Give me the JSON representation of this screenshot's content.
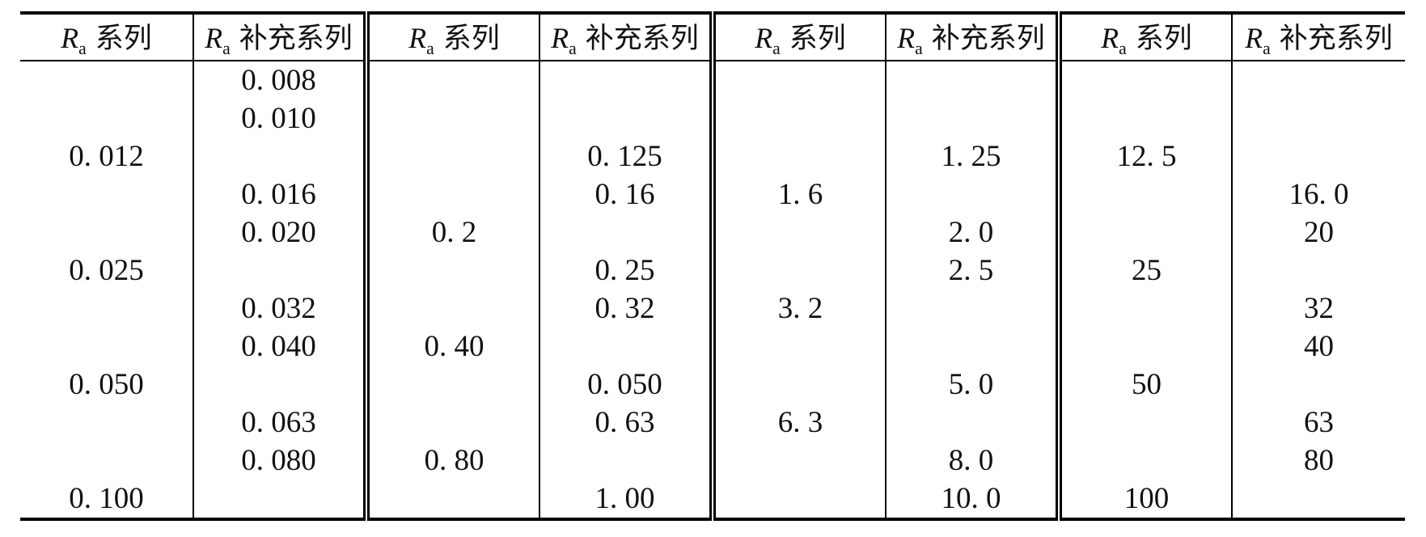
{
  "table": {
    "headers": [
      {
        "symbol": "R",
        "sub": "a",
        "label": "系列"
      },
      {
        "symbol": "R",
        "sub": "a",
        "label": "补充系列"
      },
      {
        "symbol": "R",
        "sub": "a",
        "label": "系列"
      },
      {
        "symbol": "R",
        "sub": "a",
        "label": "补充系列"
      },
      {
        "symbol": "R",
        "sub": "a",
        "label": "系列"
      },
      {
        "symbol": "R",
        "sub": "a",
        "label": "补充系列"
      },
      {
        "symbol": "R",
        "sub": "a",
        "label": "系列"
      },
      {
        "symbol": "R",
        "sub": "a",
        "label": "补充系列"
      }
    ],
    "rows": [
      [
        "",
        "0. 008",
        "",
        "",
        "",
        "",
        "",
        ""
      ],
      [
        "",
        "0. 010",
        "",
        "",
        "",
        "",
        "",
        ""
      ],
      [
        "0. 012",
        "",
        "",
        "0. 125",
        "",
        "1. 25",
        "12. 5",
        ""
      ],
      [
        "",
        "0. 016",
        "",
        "0. 16",
        "1. 6",
        "",
        "",
        "16. 0"
      ],
      [
        "",
        "0. 020",
        "0. 2",
        "",
        "",
        "2. 0",
        "",
        "20"
      ],
      [
        "0. 025",
        "",
        "",
        "0. 25",
        "",
        "2. 5",
        "25",
        ""
      ],
      [
        "",
        "0. 032",
        "",
        "0. 32",
        "3. 2",
        "",
        "",
        "32"
      ],
      [
        "",
        "0. 040",
        "0. 40",
        "",
        "",
        "",
        "",
        "40"
      ],
      [
        "0. 050",
        "",
        "",
        "0. 050",
        "",
        "5. 0",
        "50",
        ""
      ],
      [
        "",
        "0. 063",
        "",
        "0. 63",
        "6. 3",
        "",
        "",
        "63"
      ],
      [
        "",
        "0. 080",
        "0. 80",
        "",
        "",
        "8. 0",
        "",
        "80"
      ],
      [
        "0. 100",
        "",
        "",
        "1. 00",
        "",
        "10. 0",
        "100",
        ""
      ]
    ]
  },
  "colors": {
    "border": "#000000",
    "background": "#ffffff",
    "text": "#111111"
  }
}
